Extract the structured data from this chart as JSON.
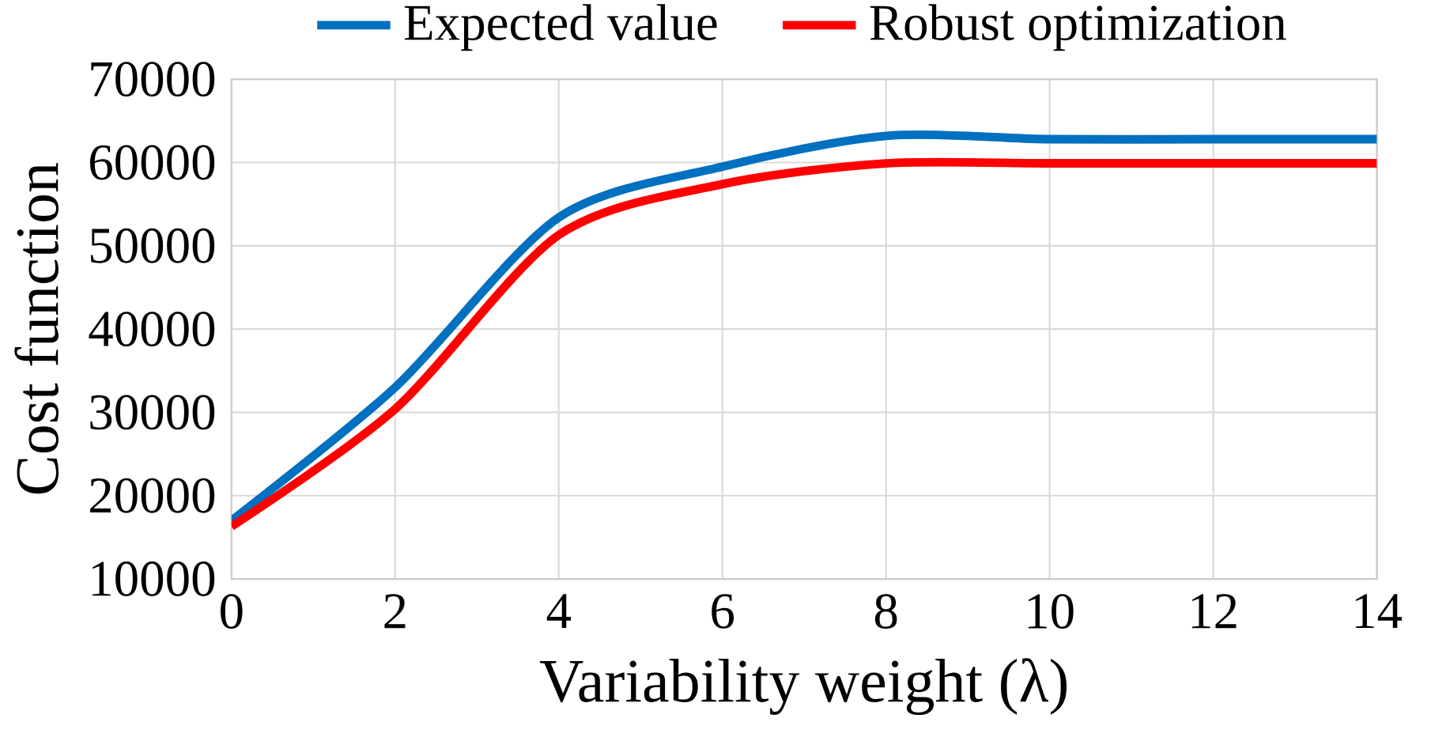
{
  "chart_data": {
    "type": "line",
    "xlabel": "Variability  weight  (λ)",
    "ylabel": "Cost function",
    "x": [
      0,
      2,
      4,
      6,
      8,
      10,
      12,
      14
    ],
    "series": [
      {
        "name": "Expected value",
        "color": "#0070c0",
        "values": [
          17000,
          33000,
          53400,
          59500,
          63200,
          62800,
          62800,
          62800
        ]
      },
      {
        "name": "Robust optimization",
        "color": "#ff0000",
        "values": [
          16300,
          30400,
          51300,
          57400,
          59900,
          59900,
          59900,
          59900
        ]
      }
    ],
    "xlim": [
      0,
      14
    ],
    "xticks": [
      0,
      2,
      4,
      6,
      8,
      10,
      12,
      14
    ],
    "ylim": [
      10000,
      70000
    ],
    "yticks": [
      10000,
      20000,
      30000,
      40000,
      50000,
      60000,
      70000
    ],
    "grid": true,
    "legend": "top",
    "marker": "none",
    "line_style": "solid"
  }
}
